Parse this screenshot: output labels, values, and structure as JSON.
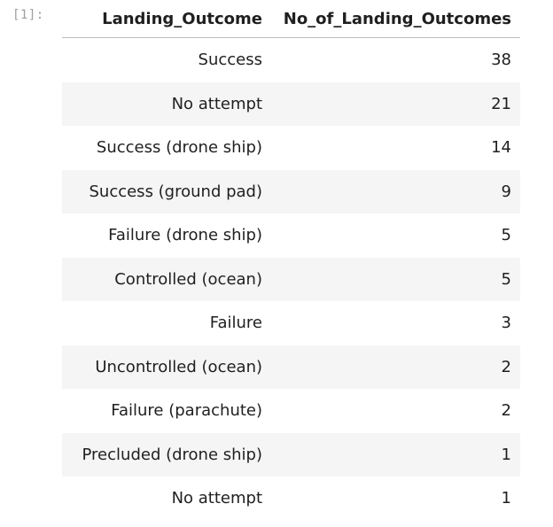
{
  "cell": {
    "prompt": "[1]:"
  },
  "table": {
    "columns": [
      "Landing_Outcome",
      "No_of_Landing_Outcomes"
    ],
    "rows": [
      {
        "outcome": "Success",
        "count": "38"
      },
      {
        "outcome": "No attempt",
        "count": "21"
      },
      {
        "outcome": "Success (drone ship)",
        "count": "14"
      },
      {
        "outcome": "Success (ground pad)",
        "count": "9"
      },
      {
        "outcome": "Failure (drone ship)",
        "count": "5"
      },
      {
        "outcome": "Controlled (ocean)",
        "count": "5"
      },
      {
        "outcome": "Failure",
        "count": "3"
      },
      {
        "outcome": "Uncontrolled (ocean)",
        "count": "2"
      },
      {
        "outcome": "Failure (parachute)",
        "count": "2"
      },
      {
        "outcome": "Precluded (drone ship)",
        "count": "1"
      },
      {
        "outcome": "No attempt",
        "count": "1"
      }
    ]
  },
  "colors": {
    "stripe": "#f5f5f5",
    "prompt": "#9e9e9e",
    "header_rule": "#bdbdbd"
  }
}
